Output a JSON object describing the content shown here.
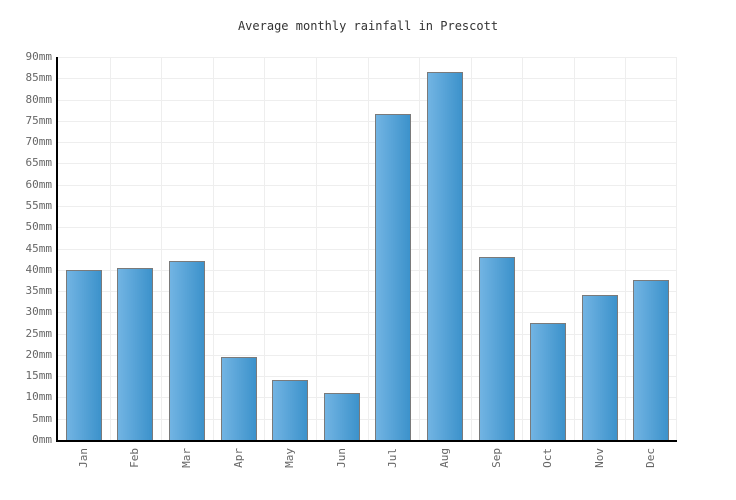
{
  "chart_data": {
    "type": "bar",
    "title": "Average monthly rainfall in Prescott",
    "categories": [
      "Jan",
      "Feb",
      "Mar",
      "Apr",
      "May",
      "Jun",
      "Jul",
      "Aug",
      "Sep",
      "Oct",
      "Nov",
      "Dec"
    ],
    "values": [
      40,
      40.5,
      42,
      19.5,
      14,
      11,
      76.5,
      86.5,
      43,
      27.5,
      34,
      37.5
    ],
    "xlabel": "",
    "ylabel": "",
    "ylim": [
      0,
      90
    ],
    "ytick_step": 5,
    "ytick_suffix": "mm",
    "grid": true,
    "legend": "none",
    "colors": {
      "bar_gradient_left": "#72b4e3",
      "bar_gradient_right": "#3c92cb",
      "bar_border": "#7a7a7a",
      "gridline": "#eeeeee",
      "axis_line": "#000000",
      "tick_label": "#666666",
      "title": "#333333",
      "background": "#ffffff"
    }
  }
}
